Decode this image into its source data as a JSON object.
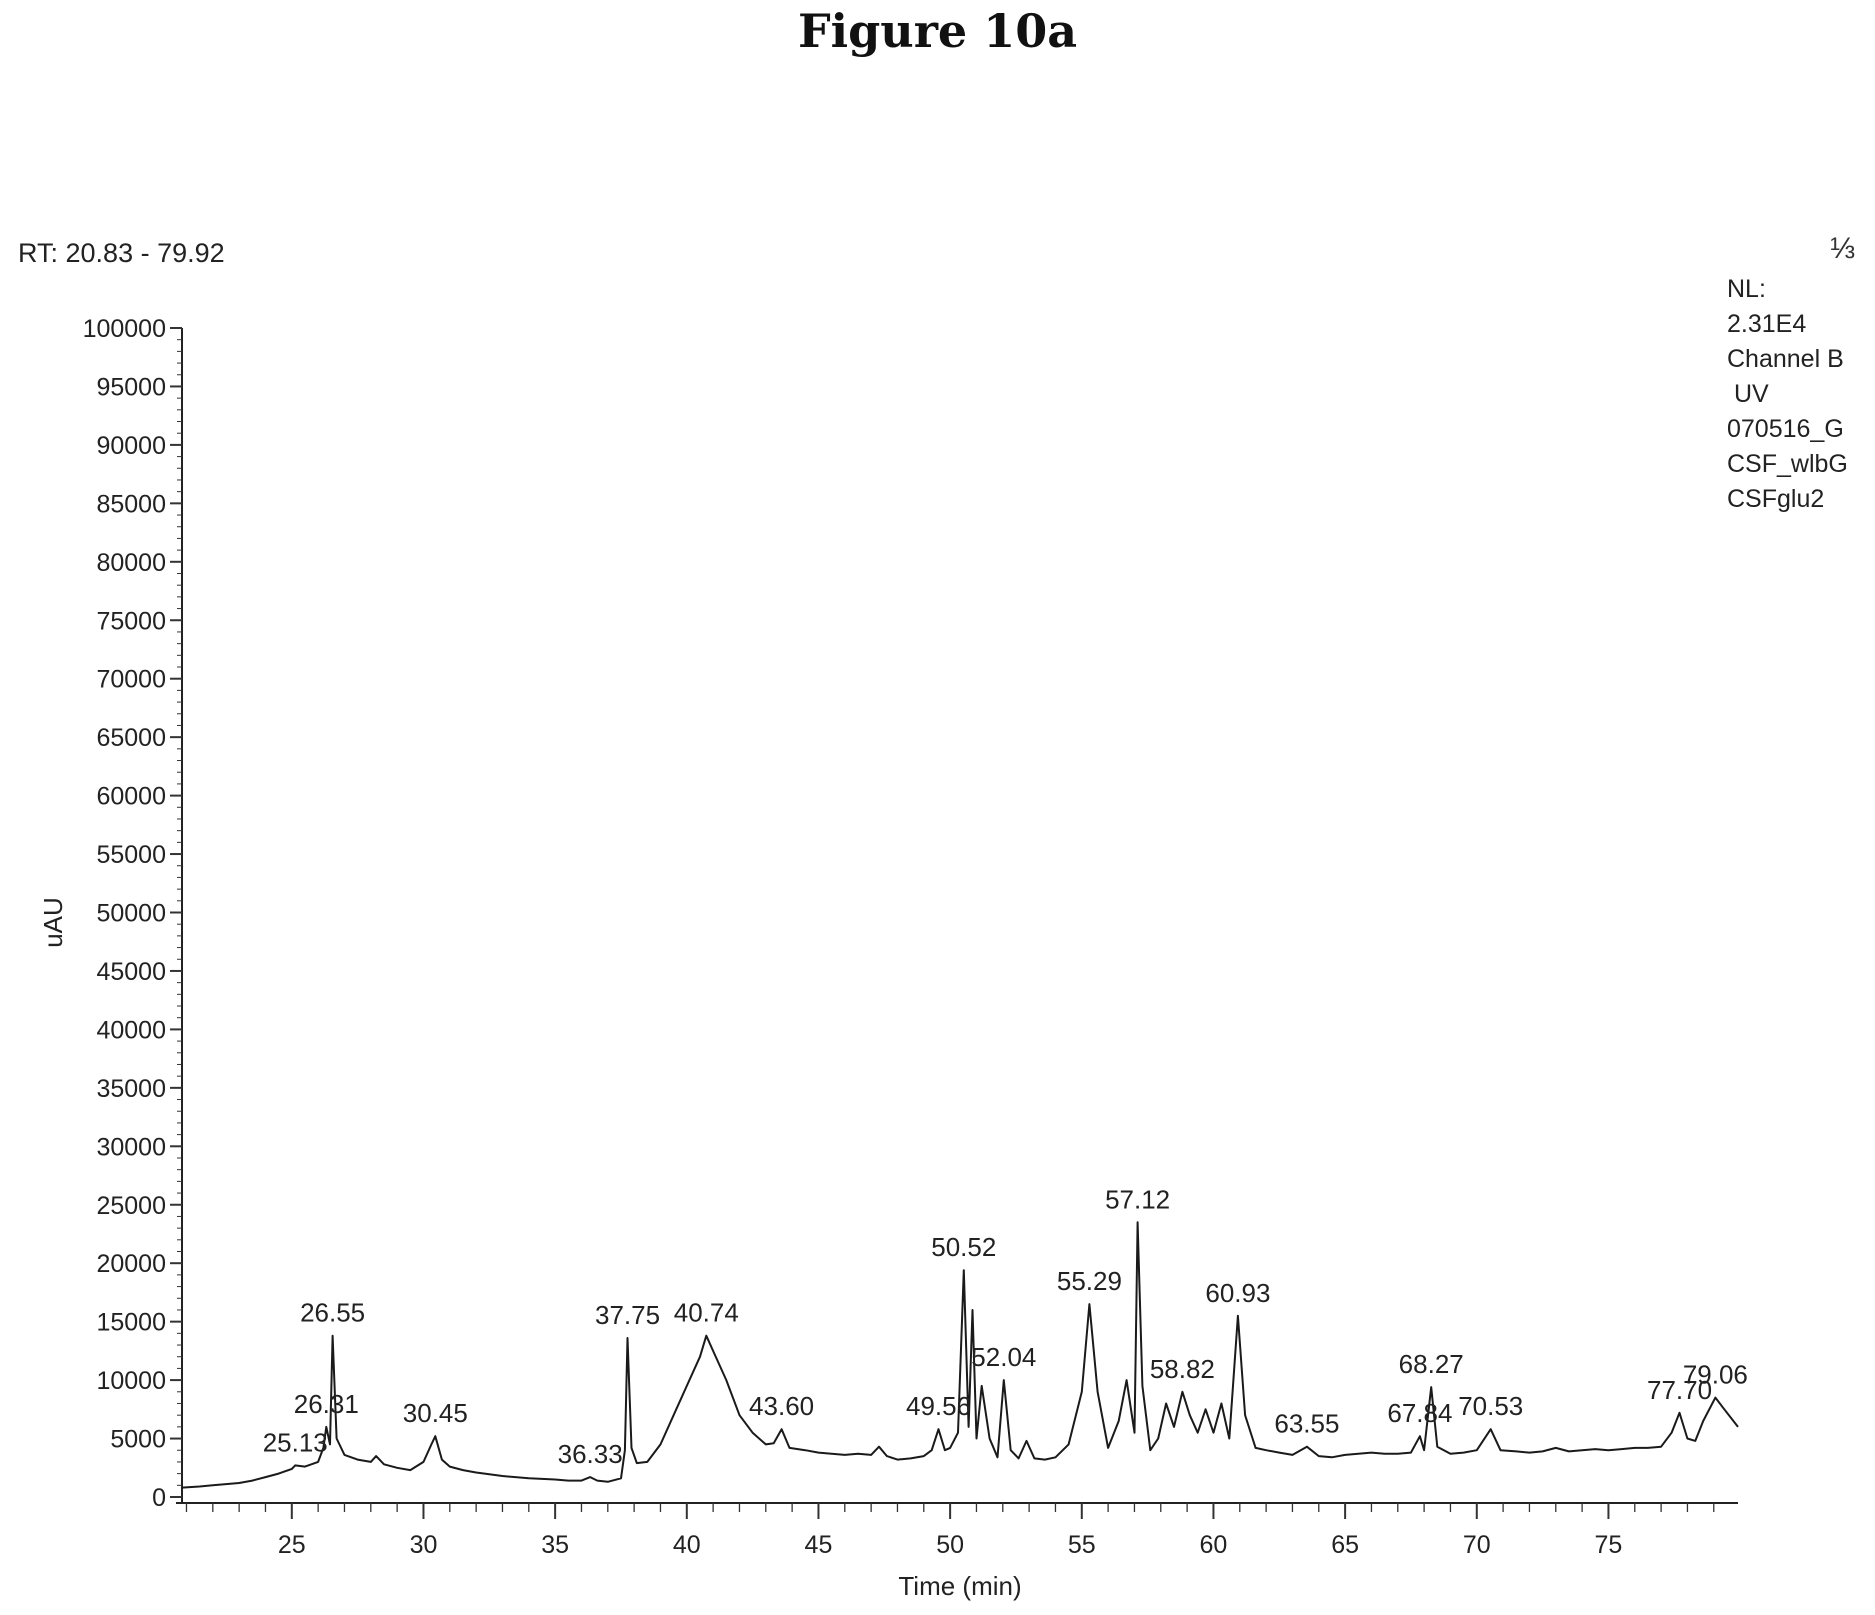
{
  "figure_title": "Figure 10a",
  "header": {
    "rt_range": "RT: 20.83 - 79.92",
    "corner_glyph": "⅓"
  },
  "info": {
    "lines": [
      "NL:",
      "2.31E4",
      "Channel B",
      " UV",
      "070516_G",
      "CSF_wlbG",
      "CSFglu2"
    ]
  },
  "chart_data": {
    "type": "line",
    "xlabel": "Time (min)",
    "ylabel": "uAU",
    "xlim": [
      20.83,
      79.92
    ],
    "ylim": [
      0,
      100000
    ],
    "x_ticks": [
      25,
      30,
      35,
      40,
      45,
      50,
      55,
      60,
      65,
      70,
      75
    ],
    "y_ticks": [
      0,
      5000,
      10000,
      15000,
      20000,
      25000,
      30000,
      35000,
      40000,
      45000,
      50000,
      55000,
      60000,
      65000,
      70000,
      75000,
      80000,
      85000,
      90000,
      95000,
      100000
    ],
    "y_tick_labels": [
      "0",
      "5000",
      "10000",
      "15000",
      "20000",
      "25000",
      "30000",
      "35000",
      "40000",
      "45000",
      "50000",
      "55000",
      "60000",
      "65000",
      "70000",
      "75000",
      "80000",
      "85000",
      "90000",
      "95000",
      "100000"
    ],
    "grid": false,
    "line_color": "#1a1a1a",
    "series": [
      {
        "x": [
          20.83,
          21.5,
          22,
          22.5,
          23,
          23.5,
          24,
          24.5,
          25,
          25.13,
          25.5,
          26,
          26.2,
          26.31,
          26.45,
          26.55,
          26.7,
          27,
          27.5,
          28,
          28.2,
          28.5,
          29,
          29.5,
          30,
          30.3,
          30.45,
          30.7,
          31,
          31.5,
          32,
          33,
          34,
          35,
          35.5,
          36,
          36.33,
          36.6,
          37,
          37.5,
          37.65,
          37.75,
          37.9,
          38.1,
          38.5,
          39,
          39.5,
          40,
          40.5,
          40.74,
          41,
          41.5,
          42,
          42.5,
          43,
          43.3,
          43.6,
          43.9,
          44.5,
          45,
          45.5,
          46,
          46.5,
          47,
          47.3,
          47.6,
          48,
          48.5,
          49,
          49.3,
          49.56,
          49.8,
          50,
          50.3,
          50.52,
          50.7,
          50.85,
          51,
          51.2,
          51.5,
          51.8,
          52.04,
          52.3,
          52.6,
          52.9,
          53.2,
          53.6,
          54,
          54.5,
          55,
          55.29,
          55.6,
          56,
          56.4,
          56.7,
          57,
          57.12,
          57.3,
          57.6,
          57.9,
          58.2,
          58.5,
          58.82,
          59.1,
          59.4,
          59.7,
          60.0,
          60.3,
          60.6,
          60.93,
          61.2,
          61.6,
          62,
          62.5,
          63,
          63.55,
          64,
          64.5,
          65,
          65.5,
          66,
          66.5,
          67,
          67.5,
          67.84,
          68.0,
          68.27,
          68.5,
          69,
          69.5,
          70,
          70.53,
          70.9,
          71.5,
          72,
          72.5,
          73,
          73.5,
          74,
          74.5,
          75,
          75.5,
          76,
          76.5,
          77,
          77.4,
          77.7,
          78,
          78.3,
          78.6,
          79.06,
          79.4,
          79.92
        ],
        "y": [
          800,
          900,
          1000,
          1100,
          1200,
          1400,
          1700,
          2000,
          2400,
          2700,
          2600,
          3000,
          4200,
          6000,
          4500,
          13800,
          5000,
          3600,
          3200,
          3000,
          3500,
          2800,
          2500,
          2300,
          3000,
          4500,
          5200,
          3200,
          2600,
          2300,
          2100,
          1800,
          1600,
          1500,
          1400,
          1400,
          1700,
          1400,
          1300,
          1600,
          4000,
          13600,
          4200,
          2900,
          3000,
          4500,
          7000,
          9500,
          12000,
          13800,
          12500,
          10000,
          7000,
          5500,
          4500,
          4600,
          5800,
          4200,
          4000,
          3800,
          3700,
          3600,
          3700,
          3600,
          4300,
          3500,
          3200,
          3300,
          3500,
          4000,
          5800,
          4000,
          4200,
          5500,
          19400,
          6000,
          16000,
          5000,
          9500,
          5000,
          3400,
          10000,
          4000,
          3300,
          4800,
          3300,
          3200,
          3400,
          4500,
          9000,
          16500,
          9000,
          4200,
          6500,
          10000,
          5500,
          23500,
          9500,
          4000,
          5000,
          8000,
          6000,
          9000,
          7000,
          5500,
          7500,
          5500,
          8000,
          5000,
          15500,
          7000,
          4200,
          4000,
          3800,
          3600,
          4300,
          3500,
          3400,
          3600,
          3700,
          3800,
          3700,
          3700,
          3800,
          5200,
          4000,
          9400,
          4300,
          3700,
          3800,
          4000,
          5800,
          4000,
          3900,
          3800,
          3900,
          4200,
          3900,
          4000,
          4100,
          4000,
          4100,
          4200,
          4200,
          4300,
          5500,
          7200,
          5000,
          4800,
          6500,
          8500,
          7500,
          6000
        ]
      }
    ],
    "peak_labels": [
      {
        "text": "25.13",
        "x": 25.13,
        "y": 2700
      },
      {
        "text": "26.31",
        "x": 26.31,
        "y": 6000
      },
      {
        "text": "26.55",
        "x": 26.55,
        "y": 13800
      },
      {
        "text": "30.45",
        "x": 30.45,
        "y": 5200
      },
      {
        "text": "36.33",
        "x": 36.33,
        "y": 1700
      },
      {
        "text": "37.75",
        "x": 37.75,
        "y": 13600
      },
      {
        "text": "40.74",
        "x": 40.74,
        "y": 13800
      },
      {
        "text": "43.60",
        "x": 43.6,
        "y": 5800
      },
      {
        "text": "49.56",
        "x": 49.56,
        "y": 5800
      },
      {
        "text": "50.52",
        "x": 50.52,
        "y": 19400
      },
      {
        "text": "52.04",
        "x": 52.04,
        "y": 10000
      },
      {
        "text": "55.29",
        "x": 55.29,
        "y": 16500
      },
      {
        "text": "57.12",
        "x": 57.12,
        "y": 23500
      },
      {
        "text": "58.82",
        "x": 58.82,
        "y": 9000
      },
      {
        "text": "60.93",
        "x": 60.93,
        "y": 15500
      },
      {
        "text": "63.55",
        "x": 63.55,
        "y": 4300
      },
      {
        "text": "67.84",
        "x": 67.84,
        "y": 5200
      },
      {
        "text": "68.27",
        "x": 68.27,
        "y": 9400
      },
      {
        "text": "70.53",
        "x": 70.53,
        "y": 5800
      },
      {
        "text": "77.70",
        "x": 77.7,
        "y": 7200
      },
      {
        "text": "79.06",
        "x": 79.06,
        "y": 8500
      }
    ]
  }
}
